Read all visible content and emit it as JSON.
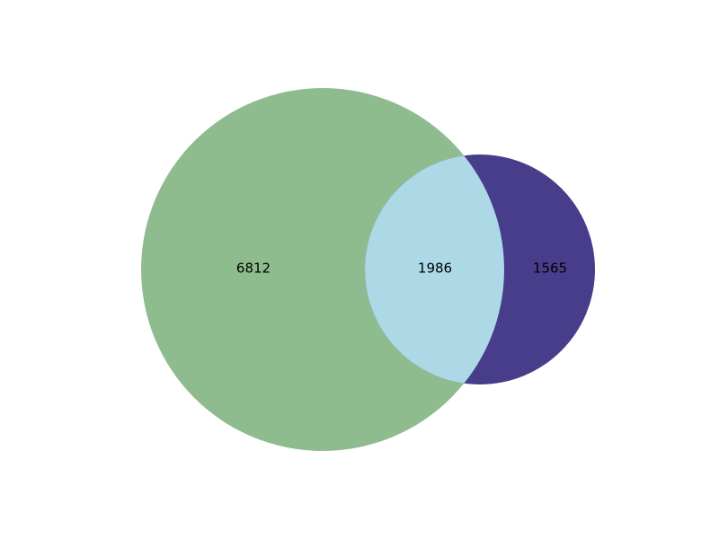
{
  "venn": {
    "type": "venn2",
    "regions": {
      "only_a": "6812",
      "intersection": "1986",
      "only_b": "1565"
    },
    "colors": {
      "set_a": "#8fbc8f",
      "set_b": "#483d8b",
      "intersection": "#add8e6",
      "label": "#000000"
    }
  }
}
